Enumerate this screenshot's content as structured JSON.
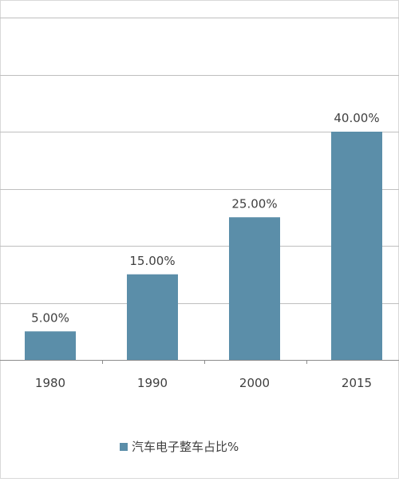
{
  "chart_data": {
    "type": "bar",
    "categories": [
      "1980",
      "1990",
      "2000",
      "2015"
    ],
    "values": [
      5,
      15,
      25,
      40
    ],
    "value_labels": [
      "5.00%",
      "15.00%",
      "25.00%",
      "40.00%"
    ],
    "series": [
      {
        "name": "汽车电子整车占比%",
        "values": [
          5,
          15,
          25,
          40
        ]
      }
    ],
    "ylim": [
      0,
      60
    ],
    "grid": true,
    "legend": "bottom",
    "colors": {
      "bar": "#5b8ea9",
      "grid": "#bfbfbf",
      "axis": "#8c8c8c",
      "text": "#404040",
      "border": "#d9d9d9"
    }
  }
}
